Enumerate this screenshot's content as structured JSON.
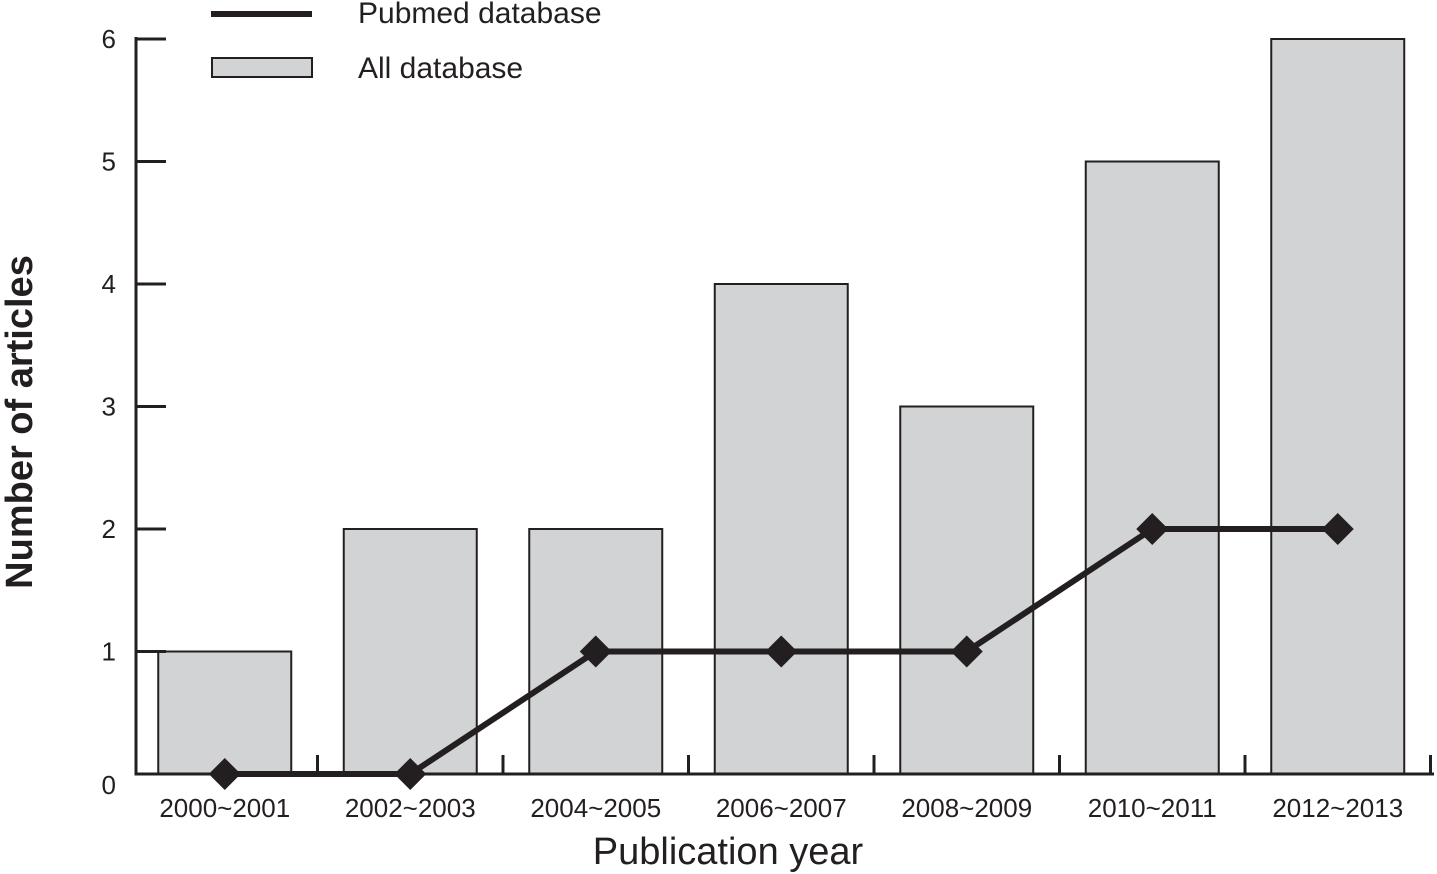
{
  "chart_data": {
    "type": "bar",
    "categories": [
      "2000~2001",
      "2002~2003",
      "2004~2005",
      "2006~2007",
      "2008~2009",
      "2010~2011",
      "2012~2013"
    ],
    "series": [
      {
        "name": "All database",
        "type": "bar",
        "values": [
          1,
          2,
          2,
          4,
          3,
          5,
          6
        ]
      },
      {
        "name": "Pubmed database",
        "type": "line",
        "marker": "diamond",
        "values": [
          0,
          0,
          1,
          1,
          1,
          2,
          2
        ]
      }
    ],
    "xlabel": "Publication year",
    "ylabel": "Number of articles",
    "ylim": [
      0,
      6
    ],
    "yticks": [
      0,
      1,
      2,
      3,
      4,
      5,
      6
    ],
    "grid": false,
    "legend_position": "top-left",
    "colors": {
      "bar_fill": "#d1d3d4",
      "bar_stroke": "#231f20",
      "line": "#231f20",
      "axis": "#231f20"
    }
  }
}
